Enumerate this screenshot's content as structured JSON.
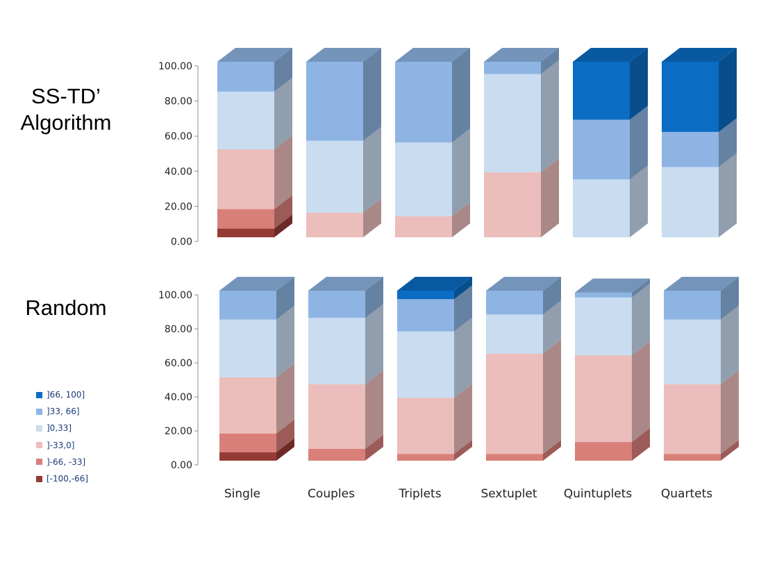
{
  "chart_data": [
    {
      "type": "bar",
      "stacked": true,
      "title": "SS-TD’ Algorithm",
      "categories": [
        "Single",
        "Couples",
        "Triplets",
        "Sextuplet",
        "Quintuplets",
        "Quartets"
      ],
      "ylim": [
        0,
        100
      ],
      "yticks": [
        "0.00",
        "20.00",
        "40.00",
        "60.00",
        "80.00",
        "100.00"
      ],
      "series": [
        {
          "name": "[-100,-66]",
          "color": "#953b35",
          "values": [
            5,
            0,
            0,
            0,
            0,
            0
          ]
        },
        {
          "name": "]-66, -33]",
          "color": "#d97f7a",
          "values": [
            11,
            0,
            0,
            0,
            0,
            0
          ]
        },
        {
          "name": "]-33,0]",
          "color": "#ebbdbb",
          "values": [
            34,
            14,
            12,
            37,
            0,
            0
          ]
        },
        {
          "name": "]0,33]",
          "color": "#c9dcf0",
          "values": [
            33,
            41,
            42,
            56,
            33,
            40
          ]
        },
        {
          "name": "]33, 66]",
          "color": "#8eb4e3",
          "values": [
            17,
            45,
            46,
            7,
            34,
            20
          ]
        },
        {
          "name": "]66, 100]",
          "color": "#0b6cc4",
          "values": [
            0,
            0,
            0,
            0,
            33,
            40
          ]
        }
      ]
    },
    {
      "type": "bar",
      "stacked": true,
      "title": "Random",
      "categories": [
        "Single",
        "Couples",
        "Triplets",
        "Sextuplet",
        "Quintuplets",
        "Quartets"
      ],
      "ylim": [
        0,
        100
      ],
      "yticks": [
        "0.00",
        "20.00",
        "40.00",
        "60.00",
        "80.00",
        "100.00"
      ],
      "series": [
        {
          "name": "[-100,-66]",
          "color": "#953b35",
          "values": [
            5,
            0,
            0,
            0,
            0,
            0
          ]
        },
        {
          "name": "]-66, -33]",
          "color": "#d97f7a",
          "values": [
            11,
            7,
            4,
            4,
            11,
            4
          ]
        },
        {
          "name": "]-33,0]",
          "color": "#ebbdbb",
          "values": [
            33,
            38,
            33,
            59,
            51,
            41
          ]
        },
        {
          "name": "]0,33]",
          "color": "#c9dcf0",
          "values": [
            34,
            39,
            39,
            23,
            34,
            38
          ]
        },
        {
          "name": "]33, 66]",
          "color": "#8eb4e3",
          "values": [
            17,
            16,
            19,
            14,
            3,
            17
          ]
        },
        {
          "name": "]66, 100]",
          "color": "#0b6cc4",
          "values": [
            0,
            0,
            5,
            0,
            0,
            0
          ]
        }
      ]
    }
  ],
  "legend": {
    "position": "left",
    "items": [
      {
        "label": "]66, 100]",
        "color": "#0b6cc4"
      },
      {
        "label": "]33, 66]",
        "color": "#8eb4e3"
      },
      {
        "label": "]0,33]",
        "color": "#c9dcf0"
      },
      {
        "label": "]-33,0]",
        "color": "#ebbdbb"
      },
      {
        "label": "]-66, -33]",
        "color": "#d97f7a"
      },
      {
        "label": "[-100,-66]",
        "color": "#953b35"
      }
    ]
  }
}
